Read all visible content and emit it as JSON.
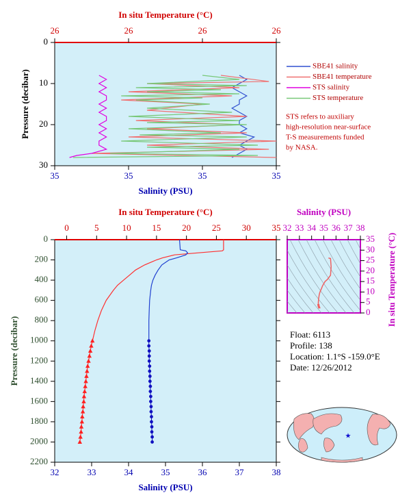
{
  "chart_data": [
    {
      "type": "line",
      "x2_label": "In situ Temperature (°C)",
      "x_label": "Salinity (PSU)",
      "y_label": "Pressure (decibar)",
      "ylim": [
        0,
        30
      ],
      "yticks": [
        0,
        10,
        20,
        30
      ],
      "y_reversed": true,
      "xlim": [
        34.9,
        35.2
      ],
      "xticks": [
        {
          "value": 34.9,
          "label": "35"
        },
        {
          "value": 35.0,
          "label": "35"
        },
        {
          "value": 35.1,
          "label": "35"
        },
        {
          "value": 35.2,
          "label": "35"
        }
      ],
      "x2lim": [
        25.7,
        26.3
      ],
      "x2ticks": [
        {
          "value": 25.7,
          "label": "26"
        },
        {
          "value": 25.9,
          "label": "26"
        },
        {
          "value": 26.1,
          "label": "26"
        },
        {
          "value": 26.3,
          "label": "26"
        }
      ],
      "background": "#d3eff9",
      "legend": "right",
      "series": [
        {
          "name": "SBE41 salinity",
          "color": "#3050d0",
          "axis": "x",
          "pressure": [
            8,
            9,
            10,
            11,
            12,
            13,
            14,
            15,
            16,
            17,
            18,
            19,
            20,
            21,
            22,
            23,
            24,
            25,
            26,
            27,
            28
          ],
          "values": [
            35.15,
            35.16,
            35.15,
            35.14,
            35.15,
            35.16,
            35.15,
            35.15,
            35.14,
            35.15,
            35.16,
            35.15,
            35.15,
            35.16,
            35.15,
            35.17,
            35.16,
            35.15,
            35.16,
            35.15,
            35.14
          ]
        },
        {
          "name": "SBE41 temperature",
          "color": "#f07070",
          "axis": "x2",
          "pressure": [
            8,
            9.5,
            10,
            11,
            12,
            13,
            14,
            15,
            16.5,
            18,
            19,
            20,
            21,
            22,
            23,
            24,
            25,
            26,
            27,
            28
          ],
          "values": [
            26.15,
            26.28,
            25.95,
            26.2,
            25.9,
            26.18,
            25.88,
            26.1,
            25.95,
            26.22,
            25.92,
            26.2,
            25.95,
            26.22,
            25.9,
            26.3,
            25.95,
            26.28,
            25.8,
            26.3
          ]
        },
        {
          "name": "STS salinity",
          "color": "#e000e0",
          "axis": "x",
          "pressure": [
            8,
            9,
            10,
            11,
            12,
            13,
            14,
            15,
            16,
            17,
            18,
            19,
            20,
            21,
            22,
            23,
            24,
            25,
            26,
            27,
            27.5,
            28
          ],
          "values": [
            34.96,
            34.97,
            34.96,
            34.97,
            34.96,
            34.97,
            34.97,
            34.96,
            34.97,
            34.96,
            34.97,
            34.97,
            34.96,
            34.97,
            34.96,
            34.97,
            34.96,
            34.96,
            34.97,
            34.95,
            34.93,
            34.92
          ]
        },
        {
          "name": "STS temperature",
          "color": "#78c878",
          "axis": "x2",
          "pressure": [
            8,
            9,
            10,
            10.5,
            11,
            11.5,
            12,
            12.5,
            13,
            13.5,
            14,
            15,
            16,
            17,
            18,
            19,
            19.5,
            20,
            21,
            22,
            22.5,
            23,
            24,
            25,
            25.5,
            26,
            27,
            27.5,
            28
          ],
          "values": [
            26.1,
            26.2,
            25.95,
            26.22,
            25.92,
            26.15,
            25.95,
            26.2,
            25.88,
            26.1,
            25.92,
            26.12,
            25.95,
            26.18,
            25.9,
            26.2,
            25.95,
            26.22,
            25.9,
            26.15,
            25.93,
            26.22,
            25.88,
            26.25,
            25.95,
            26.2,
            25.85,
            26.25,
            25.75
          ]
        }
      ],
      "note": [
        "STS refers to auxiliary",
        "high-resolution near-surface",
        "T-S measurements funded",
        "by NASA."
      ]
    },
    {
      "type": "line",
      "x2_label": "In situ Temperature (°C)",
      "x_label": "Salinity (PSU)",
      "y_label": "Pressure (decibar)",
      "ylim": [
        0,
        2200
      ],
      "yticks": [
        0,
        200,
        400,
        600,
        800,
        1000,
        1200,
        1400,
        1600,
        1800,
        2000,
        2200
      ],
      "y_reversed": true,
      "xlim": [
        32,
        38
      ],
      "xticks": [
        32,
        33,
        34,
        35,
        36,
        37,
        38
      ],
      "x2lim": [
        -2,
        35
      ],
      "x2ticks": [
        0,
        5,
        10,
        15,
        20,
        25,
        30,
        35
      ],
      "background": "#d3eff9",
      "series": [
        {
          "color": "#ff3030",
          "axis": "x2",
          "marker": null,
          "pressure": [
            0,
            100,
            110,
            130,
            150,
            180,
            200,
            250,
            300,
            350,
            400,
            450,
            500,
            600,
            700,
            800,
            900,
            1000
          ],
          "values": [
            26.2,
            26.2,
            26,
            22,
            18,
            16,
            15,
            13,
            11.5,
            10.5,
            9.5,
            8.5,
            7.8,
            6.6,
            5.8,
            5.2,
            4.7,
            4.3
          ]
        },
        {
          "color": "#2040d0",
          "axis": "x",
          "marker": null,
          "pressure": [
            0,
            100,
            110,
            130,
            150,
            180,
            200,
            250,
            300,
            350,
            400,
            450,
            500,
            600,
            700,
            800,
            900,
            1000
          ],
          "values": [
            35.38,
            35.4,
            35.55,
            35.6,
            35.55,
            35.3,
            35.1,
            34.9,
            34.8,
            34.72,
            34.66,
            34.62,
            34.6,
            34.57,
            34.56,
            34.55,
            34.55,
            34.55
          ]
        },
        {
          "color": "#ff2020",
          "axis": "x2",
          "marker": "triangle",
          "pressure": [
            1000,
            1050,
            1100,
            1150,
            1200,
            1250,
            1300,
            1350,
            1400,
            1450,
            1500,
            1550,
            1600,
            1650,
            1700,
            1750,
            1800,
            1850,
            1900,
            1950,
            2000
          ],
          "values": [
            4.3,
            4.1,
            3.95,
            3.8,
            3.65,
            3.5,
            3.4,
            3.3,
            3.2,
            3.1,
            3.0,
            2.9,
            2.85,
            2.75,
            2.7,
            2.6,
            2.55,
            2.45,
            2.4,
            2.3,
            2.2
          ]
        },
        {
          "color": "#1010c0",
          "axis": "x",
          "marker": "circle",
          "pressure": [
            1000,
            1050,
            1100,
            1150,
            1200,
            1250,
            1300,
            1350,
            1400,
            1450,
            1500,
            1550,
            1600,
            1650,
            1700,
            1750,
            1800,
            1850,
            1900,
            1950,
            2000
          ],
          "values": [
            34.55,
            34.55,
            34.56,
            34.56,
            34.56,
            34.57,
            34.57,
            34.58,
            34.58,
            34.59,
            34.59,
            34.6,
            34.6,
            34.61,
            34.61,
            34.62,
            34.62,
            34.63,
            34.63,
            34.64,
            34.64
          ]
        }
      ]
    },
    {
      "type": "ts-diagram",
      "x_label": "Salinity (PSU)",
      "y_label": "In situ Temperature (°C)",
      "xlim": [
        32,
        38
      ],
      "xticks": [
        32,
        33,
        34,
        35,
        36,
        37,
        38
      ],
      "ylim": [
        0,
        35
      ],
      "yticks": [
        0,
        5,
        10,
        15,
        20,
        25,
        30,
        35
      ],
      "color": "#f06060",
      "axis_color": "#c000c0"
    }
  ],
  "float_info": [
    "Float:  6113",
    "Profile:  138",
    "Location:  1.1°S  -159.0°E",
    "Date:  12/26/2012"
  ]
}
